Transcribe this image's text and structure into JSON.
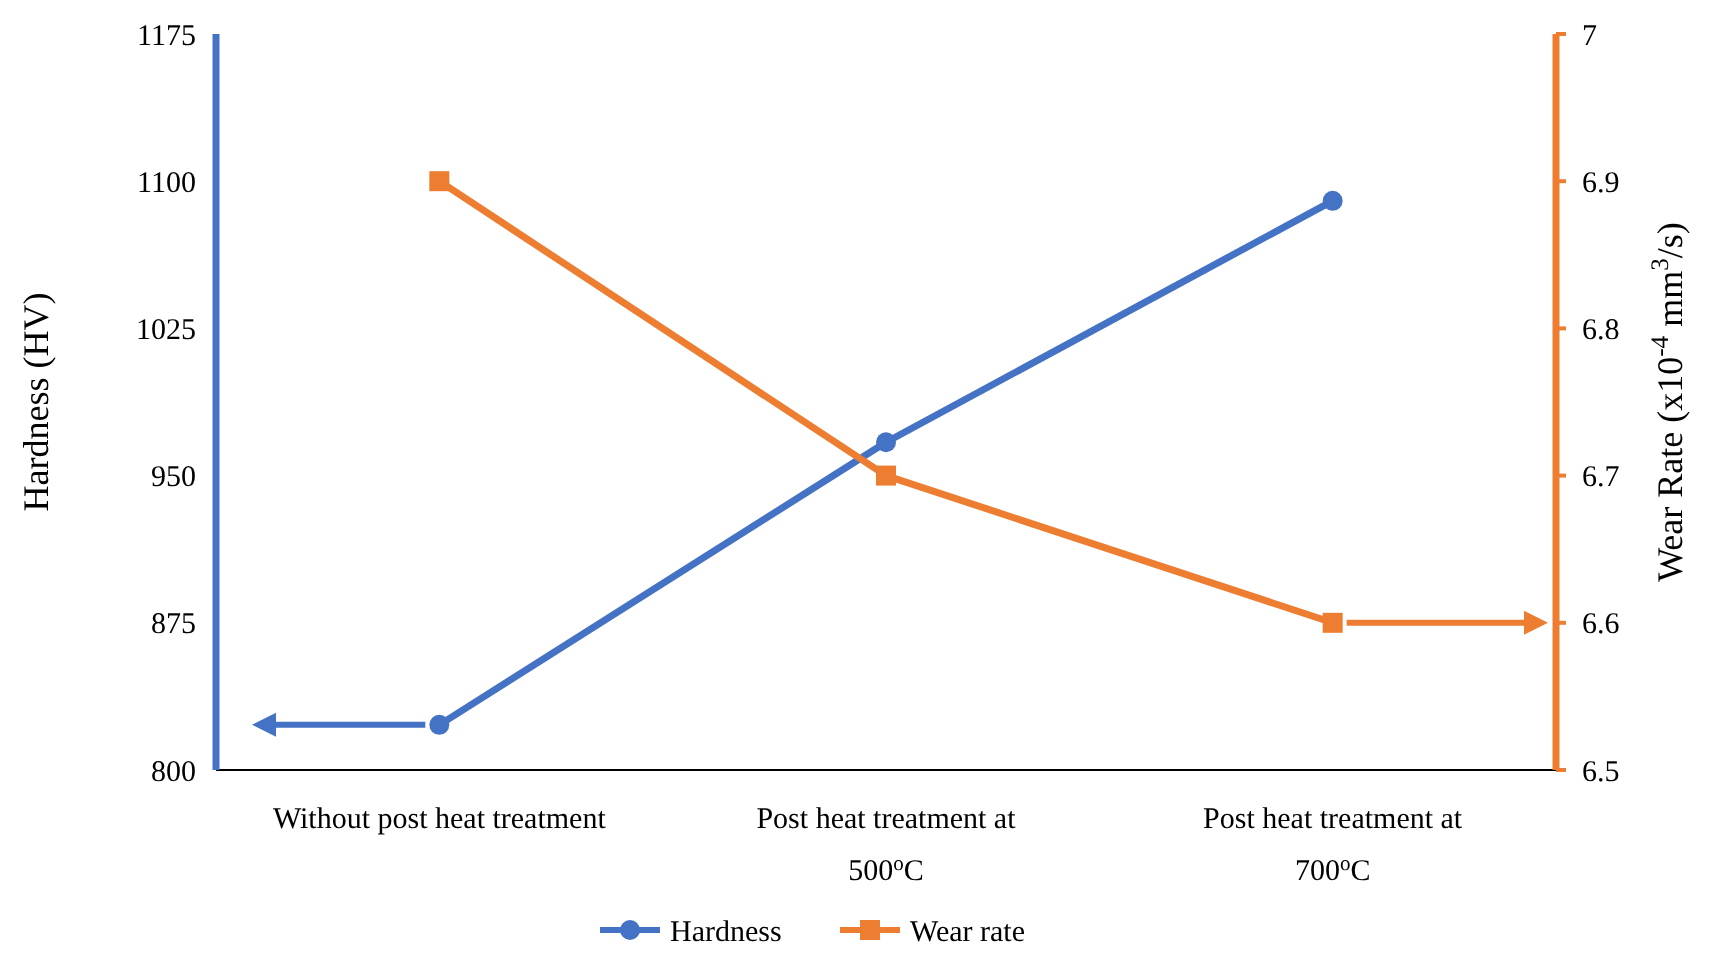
{
  "chart_data": {
    "type": "line",
    "categories": [
      "Without post heat treatment",
      "Post heat treatment at 500$^{o}$C",
      "Post heat treatment at 700$^{o}$C"
    ],
    "series": [
      {
        "name": "Hardness",
        "color": "#4472c4",
        "values": [
          823,
          967,
          1090
        ],
        "marker": "circle"
      },
      {
        "name": "Wear rate",
        "color": "#ed7d31",
        "values": [
          6.9,
          6.7,
          6.6
        ],
        "marker": "square",
        "axis": "y2"
      }
    ],
    "ylabel": "Hardness (HV)",
    "y2label": "Wear Rate (x10$^{-4}$ mm$^{3}$/s)",
    "ylim": [
      800,
      1175
    ],
    "yticks": [
      800,
      875,
      950,
      1025,
      1100,
      1175
    ],
    "y2lim": [
      6.5,
      7
    ],
    "y2ticks": [
      6.5,
      6.6,
      6.7,
      6.8,
      6.9,
      7
    ],
    "legend": "bottom",
    "grid": false
  }
}
